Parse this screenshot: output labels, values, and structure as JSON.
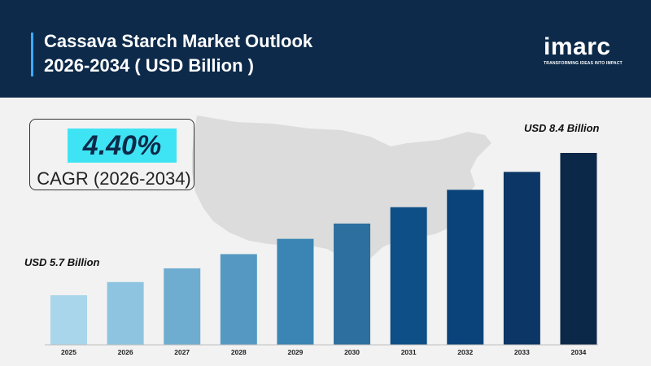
{
  "header": {
    "title_line1": "Cassava Starch Market Outlook",
    "title_line2": "2026-2034 ( USD Billion )",
    "accent_color": "#3fa9f5",
    "background_color": "#0d2a4a"
  },
  "logo": {
    "word": "imarc",
    "tagline": "TRANSFORMING IDEAS INTO IMPACT"
  },
  "cagr": {
    "value": "4.40%",
    "label": "CAGR (2026-2034)",
    "highlight_color": "#3fe4f4"
  },
  "chart_data": {
    "type": "bar",
    "title": "",
    "xlabel": "",
    "ylabel": "",
    "categories": [
      "2025",
      "2026",
      "2027",
      "2028",
      "2029",
      "2030",
      "2031",
      "2032",
      "2033",
      "2034"
    ],
    "values": [
      5.7,
      5.95,
      6.21,
      6.48,
      6.77,
      7.06,
      7.37,
      7.7,
      8.04,
      8.4
    ],
    "ylim": [
      5.0,
      8.6
    ],
    "grid": false,
    "annotations": [
      {
        "category": "2025",
        "text": "USD 5.7 Billion"
      },
      {
        "category": "2034",
        "text": "USD 8.4 Billion"
      }
    ],
    "colors": [
      "#a9d6ea",
      "#8ec4df",
      "#6eadd0",
      "#5599c2",
      "#3a85b3",
      "#2d6f9e",
      "#0d4f86",
      "#0a437a",
      "#0b3665",
      "#0b2848"
    ]
  }
}
